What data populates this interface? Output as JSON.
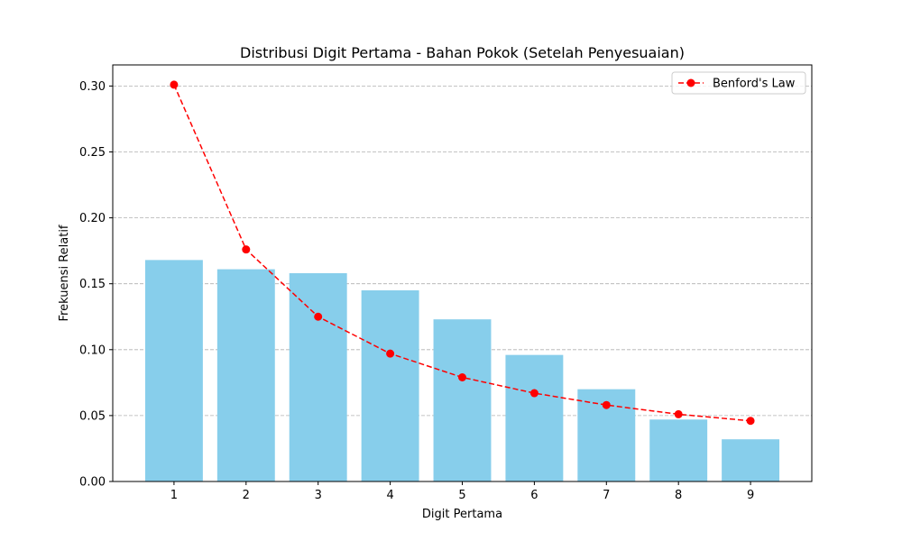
{
  "chart_data": {
    "type": "bar",
    "title": "Distribusi Digit Pertama - Bahan Pokok (Setelah Penyesuaian)",
    "xlabel": "Digit Pertama",
    "ylabel": "Frekuensi Relatif",
    "categories": [
      "1",
      "2",
      "3",
      "4",
      "5",
      "6",
      "7",
      "8",
      "9"
    ],
    "ylim": [
      0,
      0.316
    ],
    "yticks": [
      "0.00",
      "0.05",
      "0.10",
      "0.15",
      "0.20",
      "0.25",
      "0.30"
    ],
    "grid": "horizontal dashed",
    "legend_position": "top-right",
    "series": [
      {
        "type": "bar",
        "color": "#87ceeb",
        "values": [
          0.168,
          0.161,
          0.158,
          0.145,
          0.123,
          0.096,
          0.07,
          0.047,
          0.032
        ]
      },
      {
        "type": "line",
        "name": "Benford's Law",
        "color": "#ff0000",
        "style": "dashed",
        "marker": "circle",
        "values": [
          0.301,
          0.176,
          0.125,
          0.097,
          0.079,
          0.067,
          0.058,
          0.051,
          0.046
        ]
      }
    ]
  }
}
